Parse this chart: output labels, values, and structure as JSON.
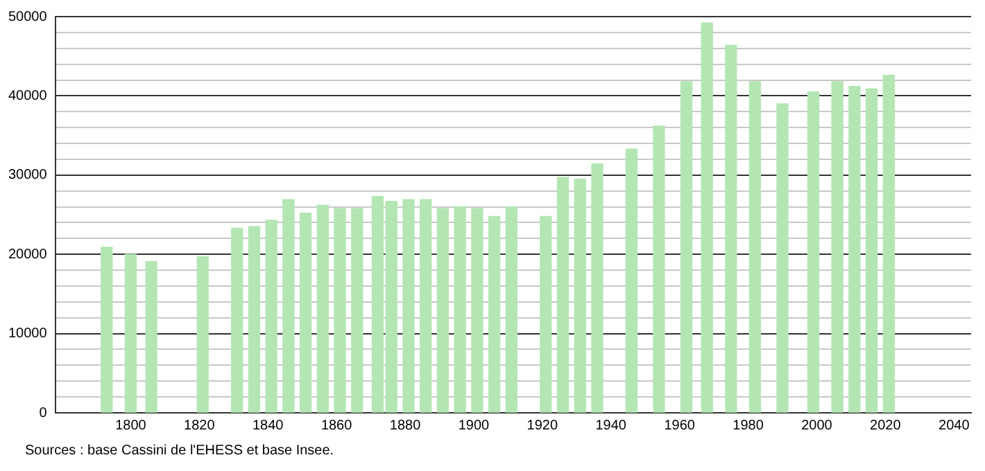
{
  "chart_data": {
    "type": "bar",
    "x": [
      1793,
      1800,
      1806,
      1821,
      1831,
      1836,
      1841,
      1846,
      1851,
      1856,
      1861,
      1866,
      1872,
      1876,
      1881,
      1886,
      1891,
      1896,
      1901,
      1906,
      1911,
      1921,
      1926,
      1931,
      1936,
      1946,
      1954,
      1962,
      1968,
      1975,
      1982,
      1990,
      1999,
      2006,
      2011,
      2016,
      2021
    ],
    "values": [
      20900,
      20000,
      19100,
      19700,
      23300,
      23500,
      24300,
      26900,
      25200,
      26200,
      25800,
      25800,
      27300,
      26700,
      26900,
      26900,
      25800,
      26000,
      25800,
      24800,
      26000,
      24800,
      29700,
      29500,
      31400,
      33300,
      36200,
      41800,
      49200,
      46400,
      41800,
      39000,
      40500,
      41800,
      41200,
      40900,
      42600
    ],
    "color": "#b3e6b3",
    "xlim": [
      1778,
      2045
    ],
    "xticks": [
      1800,
      1820,
      1840,
      1860,
      1880,
      1900,
      1920,
      1940,
      1960,
      1980,
      2000,
      2020,
      2040
    ],
    "ylim": [
      0,
      50000
    ],
    "yticks": [
      0,
      {
        "value": 2000,
        "label": null
      },
      {
        "value": 4000,
        "label": null
      },
      {
        "value": 6000,
        "label": null
      },
      {
        "value": 8000,
        "label": null
      },
      10000,
      {
        "value": 12000,
        "label": null
      },
      {
        "value": 14000,
        "label": null
      },
      {
        "value": 16000,
        "label": null
      },
      {
        "value": 18000,
        "label": null
      },
      20000,
      {
        "value": 22000,
        "label": null
      },
      {
        "value": 24000,
        "label": null
      },
      {
        "value": 26000,
        "label": null
      },
      {
        "value": 28000,
        "label": null
      },
      30000,
      {
        "value": 32000,
        "label": null
      },
      {
        "value": 34000,
        "label": null
      },
      {
        "value": 36000,
        "label": null
      },
      {
        "value": 38000,
        "label": null
      },
      40000,
      {
        "value": 42000,
        "label": null
      },
      {
        "value": 44000,
        "label": null
      },
      {
        "value": 46000,
        "label": null
      },
      {
        "value": 48000,
        "label": null
      },
      50000
    ],
    "grid": "y",
    "annotations": [
      "Sources : base Cassini de l'EHESS et base Insee."
    ]
  }
}
